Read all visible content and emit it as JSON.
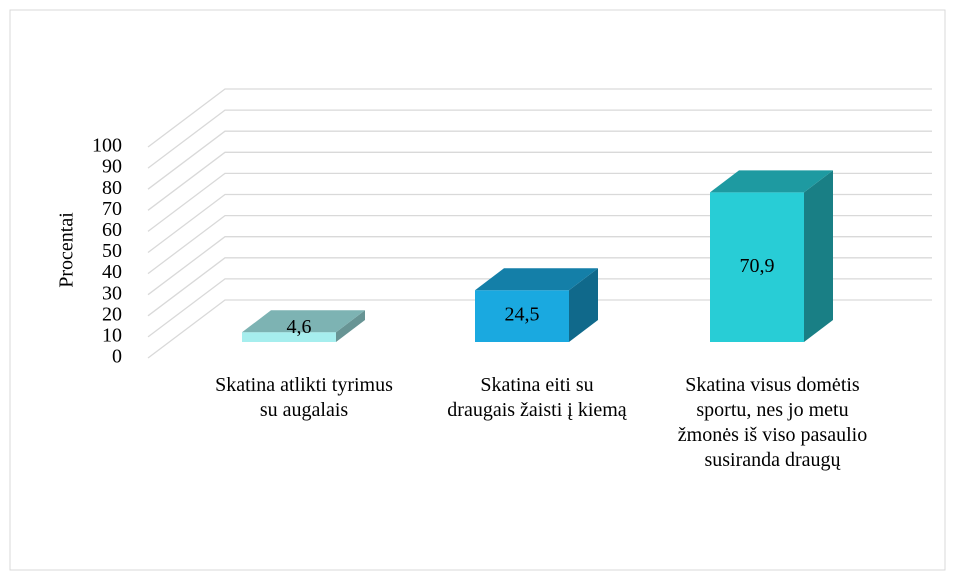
{
  "chart_data": {
    "type": "bar3d",
    "y_label": "Procentai",
    "categories": [
      "Skatina atlikti tyrimus su augalais",
      "Skatina eiti su draugais žaisti į kiemą",
      "Skatina visus domėtis sportu, nes jo metu žmonės iš viso pasaulio susiranda draugų"
    ],
    "values": [
      4.6,
      24.5,
      70.9
    ],
    "value_labels": [
      "4,6",
      "24,5",
      "70,9"
    ],
    "colors": [
      "#a6eeee",
      "#1aa9e0",
      "#28cdd6"
    ],
    "ylim": [
      0,
      100
    ],
    "yticks": [
      0,
      10,
      20,
      30,
      40,
      50,
      60,
      70,
      80,
      90,
      100
    ],
    "grid": true
  }
}
